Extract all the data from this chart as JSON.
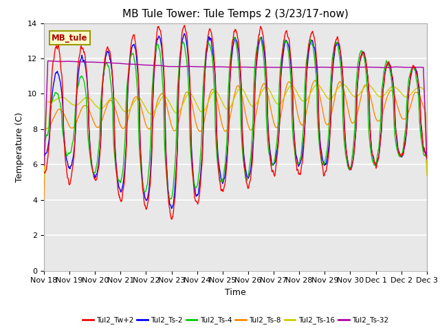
{
  "title": "MB Tule Tower: Tule Temps 2 (3/23/17-now)",
  "xlabel": "Time",
  "ylabel": "Temperature (C)",
  "xlim": [
    0,
    15
  ],
  "ylim": [
    0,
    14
  ],
  "yticks": [
    0,
    2,
    4,
    6,
    8,
    10,
    12,
    14
  ],
  "xtick_labels": [
    "Nov 18",
    "Nov 19",
    "Nov 20",
    "Nov 21",
    "Nov 22",
    "Nov 23",
    "Nov 24",
    "Nov 25",
    "Nov 26",
    "Nov 27",
    "Nov 28",
    "Nov 29",
    "Nov 30",
    "Dec 1",
    "Dec 2",
    "Dec 3"
  ],
  "line_colors": [
    "#ff0000",
    "#0000ff",
    "#00cc00",
    "#ff8800",
    "#cccc00",
    "#aa00aa"
  ],
  "line_labels": [
    "Tul2_Tw+2",
    "Tul2_Ts-2",
    "Tul2_Ts-4",
    "Tul2_Ts-8",
    "Tul2_Ts-16",
    "Tul2_Ts-32"
  ],
  "legend_box_color": "#ffffcc",
  "legend_box_text": "MB_tule",
  "legend_box_text_color": "#aa0000",
  "bg_color": "#e8e8e8",
  "grid_color": "#ffffff",
  "title_fontsize": 11,
  "axis_fontsize": 9,
  "tick_fontsize": 8
}
